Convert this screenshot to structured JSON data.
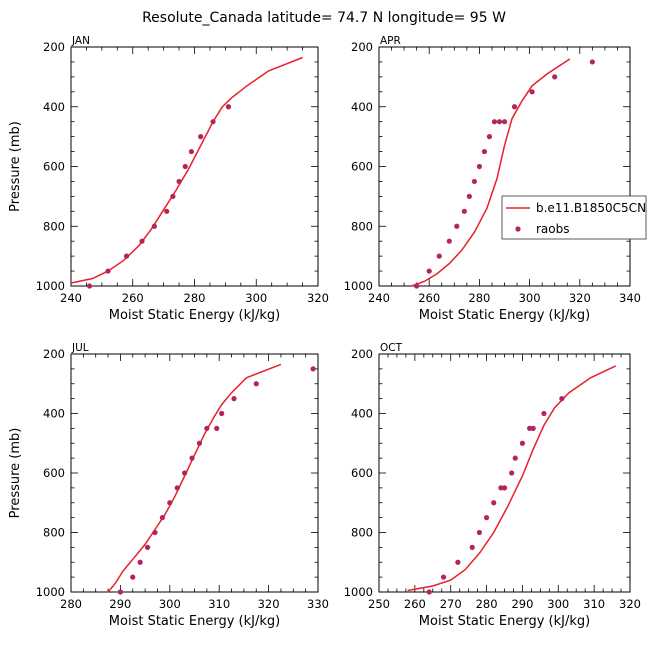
{
  "chart_data": {
    "title": "Resolute_Canada   latitude= 74.7 N longitude= 95 W",
    "colors": {
      "model": "#e8202a",
      "obs": "#b5245a"
    },
    "legend": {
      "model": "b.e11.B1850C5CN",
      "obs": "raobs"
    },
    "panels": [
      {
        "name": "JAN",
        "type": "line+scatter",
        "xlabel": "Moist Static Energy (kJ/kg)",
        "ylabel": "Pressure (mb)",
        "xlim": [
          240,
          320
        ],
        "xticks": [
          240,
          260,
          280,
          300,
          320
        ],
        "ylim": [
          200,
          1000
        ],
        "yticks": [
          200,
          400,
          600,
          800,
          1000
        ],
        "model": {
          "x": [
            240,
            247,
            252,
            257,
            262,
            266,
            270,
            274,
            278,
            282,
            286,
            289,
            292,
            297,
            304,
            315
          ],
          "y": [
            990,
            975,
            950,
            915,
            865,
            810,
            745,
            680,
            610,
            530,
            450,
            400,
            370,
            330,
            280,
            235
          ]
        },
        "obs": {
          "x": [
            246,
            252,
            258,
            263,
            267,
            271,
            273,
            275,
            277,
            279,
            282,
            286,
            291
          ],
          "y": [
            1000,
            950,
            900,
            850,
            800,
            750,
            700,
            650,
            600,
            550,
            500,
            450,
            400
          ]
        }
      },
      {
        "name": "APR",
        "type": "line+scatter",
        "xlabel": "Moist Static Energy (kJ/kg)",
        "ylabel": "",
        "xlim": [
          240,
          340
        ],
        "xticks": [
          240,
          260,
          280,
          300,
          320,
          340
        ],
        "ylim": [
          200,
          1000
        ],
        "yticks": [
          200,
          400,
          600,
          800,
          1000
        ],
        "model": {
          "x": [
            253,
            258,
            263,
            268,
            273,
            278,
            283,
            287,
            290,
            293,
            297,
            301,
            307,
            316
          ],
          "y": [
            1000,
            985,
            960,
            925,
            880,
            820,
            740,
            640,
            530,
            440,
            380,
            330,
            290,
            240
          ]
        },
        "obs": {
          "x": [
            255,
            260,
            264,
            268,
            271,
            274,
            276,
            278,
            280,
            282,
            284,
            286,
            288,
            290,
            294,
            301,
            310,
            325
          ],
          "y": [
            1000,
            950,
            900,
            850,
            800,
            750,
            700,
            650,
            600,
            550,
            500,
            450,
            450,
            450,
            400,
            350,
            300,
            250
          ]
        }
      },
      {
        "name": "JUL",
        "type": "line+scatter",
        "xlabel": "Moist Static Energy (kJ/kg)",
        "ylabel": "Pressure (mb)",
        "xlim": [
          280,
          330
        ],
        "xticks": [
          280,
          290,
          300,
          310,
          320,
          330
        ],
        "ylim": [
          200,
          1000
        ],
        "yticks": [
          200,
          400,
          600,
          800,
          1000
        ],
        "model": {
          "x": [
            287.5,
            289,
            290.5,
            292.5,
            295,
            297,
            299,
            301,
            303,
            305,
            307,
            309,
            310.5,
            312.5,
            315.5,
            322.5
          ],
          "y": [
            1000,
            970,
            930,
            890,
            840,
            790,
            740,
            680,
            610,
            540,
            470,
            410,
            370,
            330,
            280,
            235
          ]
        },
        "obs": {
          "x": [
            290,
            292.5,
            294,
            295.5,
            297,
            298.5,
            300,
            301.5,
            303,
            304.5,
            306,
            307.5,
            309.5,
            310.5,
            313,
            317.5,
            329
          ],
          "y": [
            1000,
            950,
            900,
            850,
            800,
            750,
            700,
            650,
            600,
            550,
            500,
            450,
            450,
            400,
            350,
            300,
            250
          ]
        }
      },
      {
        "name": "OCT",
        "type": "line+scatter",
        "xlabel": "Moist Static Energy (kJ/kg)",
        "ylabel": "",
        "xlim": [
          250,
          320
        ],
        "xticks": [
          250,
          260,
          270,
          280,
          290,
          300,
          310,
          320
        ],
        "ylim": [
          200,
          1000
        ],
        "yticks": [
          200,
          400,
          600,
          800,
          1000
        ],
        "model": {
          "x": [
            258,
            265,
            270,
            274,
            278,
            282,
            286,
            290,
            293,
            296,
            299,
            303,
            309,
            316
          ],
          "y": [
            995,
            980,
            960,
            925,
            870,
            800,
            710,
            610,
            520,
            440,
            380,
            330,
            280,
            240
          ]
        },
        "obs": {
          "x": [
            264,
            268,
            272,
            276,
            278,
            280,
            282,
            284,
            285,
            287,
            288,
            290,
            292,
            293,
            296,
            301
          ],
          "y": [
            1000,
            950,
            900,
            850,
            800,
            750,
            700,
            650,
            650,
            600,
            550,
            500,
            450,
            450,
            400,
            350
          ]
        }
      }
    ]
  }
}
